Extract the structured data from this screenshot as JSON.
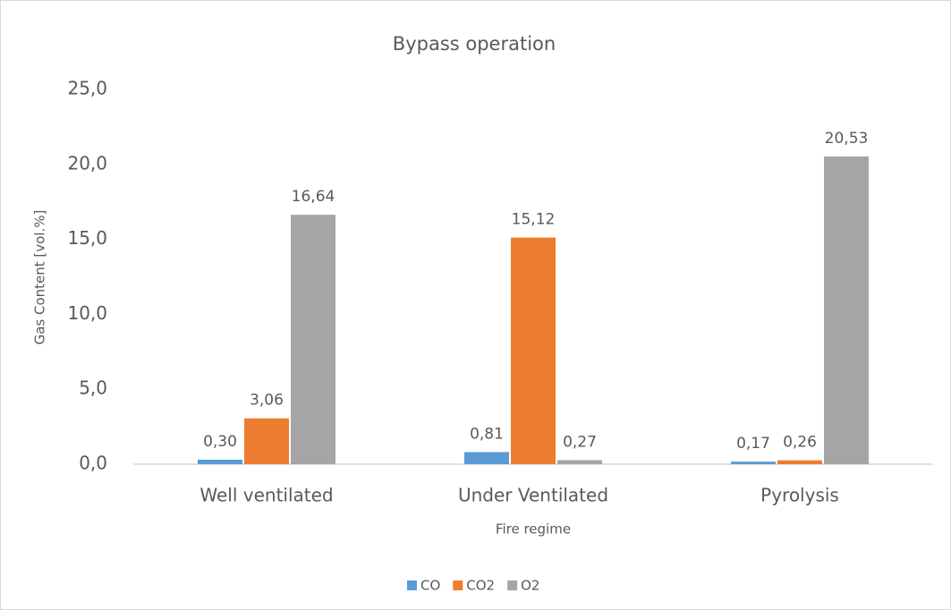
{
  "chart_data": {
    "type": "bar",
    "title": "Bypass operation",
    "x_label": "Fire regime",
    "y_label": "Gas Content [vol.%]",
    "categories": [
      "Well ventilated",
      "Under Ventilated",
      "Pyrolysis"
    ],
    "series": [
      {
        "name": "CO",
        "color": "#5b9bd5",
        "values": [
          0.3,
          0.81,
          0.17
        ],
        "value_labels": [
          "0,30",
          "0,81",
          "0,17"
        ]
      },
      {
        "name": "CO2",
        "color": "#ed7d31",
        "values": [
          3.06,
          15.12,
          0.26
        ],
        "value_labels": [
          "3,06",
          "15,12",
          "0,26"
        ]
      },
      {
        "name": "O2",
        "color": "#a5a5a5",
        "values": [
          16.64,
          0.27,
          20.53
        ],
        "value_labels": [
          "16,64",
          "0,27",
          "20,53"
        ]
      }
    ],
    "ylim": [
      0,
      25
    ],
    "yticks": [
      {
        "value": 0,
        "label": "0,0"
      },
      {
        "value": 5,
        "label": "5,0"
      },
      {
        "value": 10,
        "label": "10,0"
      },
      {
        "value": 15,
        "label": "15,0"
      },
      {
        "value": 20,
        "label": "20,0"
      },
      {
        "value": 25,
        "label": "25,0"
      }
    ],
    "grid": false,
    "legend": "bottom"
  }
}
